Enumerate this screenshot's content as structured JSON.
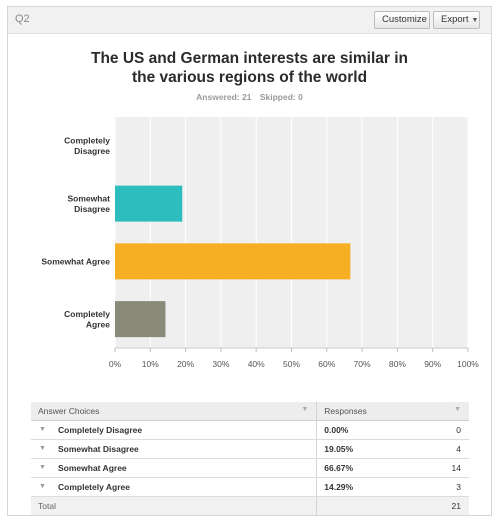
{
  "question": {
    "number": "Q2",
    "title_line1": "The US and German interests are similar in",
    "title_line2": "the various regions of the world",
    "answered_label": "Answered: 21",
    "skipped_label": "Skipped: 0"
  },
  "toolbar": {
    "customize_label": "Customize",
    "export_label": "Export",
    "export_caret": "▼"
  },
  "chart_data": {
    "type": "bar",
    "orientation": "horizontal",
    "categories": [
      "Completely Disagree",
      "Somewhat Disagree",
      "Somewhat Agree",
      "Completely Agree"
    ],
    "category_label_lines": [
      [
        "Completely",
        "Disagree"
      ],
      [
        "Somewhat",
        "Disagree"
      ],
      [
        "Somewhat Agree"
      ],
      [
        "Completely",
        "Agree"
      ]
    ],
    "values": [
      0.0,
      19.05,
      66.67,
      14.29
    ],
    "colors": [
      "#ec3f4d",
      "#2dbdbd",
      "#f6ae22",
      "#8a8a7a"
    ],
    "xlim": [
      0,
      100
    ],
    "xticks": [
      "0%",
      "10%",
      "20%",
      "30%",
      "40%",
      "50%",
      "60%",
      "70%",
      "80%",
      "90%",
      "100%"
    ],
    "grid": true,
    "background": "#efefef"
  },
  "table": {
    "headers": [
      "Answer Choices",
      "Responses"
    ],
    "header_arrow": "▼",
    "row_arrow": "▼",
    "rows": [
      {
        "label": "Completely Disagree",
        "pct": "0.00%",
        "count": "0"
      },
      {
        "label": "Somewhat Disagree",
        "pct": "19.05%",
        "count": "4"
      },
      {
        "label": "Somewhat Agree",
        "pct": "66.67%",
        "count": "14"
      },
      {
        "label": "Completely Agree",
        "pct": "14.29%",
        "count": "3"
      }
    ],
    "total_label": "Total",
    "total_count": "21"
  }
}
